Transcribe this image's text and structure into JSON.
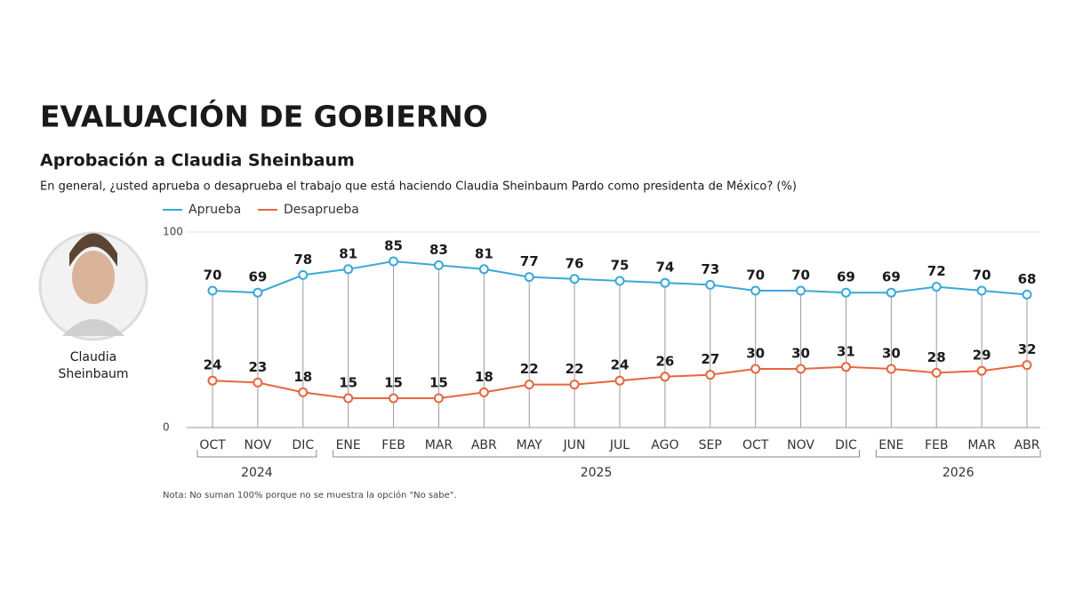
{
  "chart_data": {
    "type": "line",
    "title": "EVALUACIÓN DE GOBIERNO",
    "subtitle": "Aprobación a Claudia Sheinbaum",
    "question": "En general, ¿usted aprueba o desaprueba el trabajo que está haciendo Claudia Sheinbaum Pardo como presidenta de México? (%)",
    "photo_caption": [
      "Claudia",
      "Sheinbaum"
    ],
    "categories": [
      "OCT",
      "NOV",
      "DIC",
      "ENE",
      "FEB",
      "MAR",
      "ABR",
      "MAY",
      "JUN",
      "JUL",
      "AGO",
      "SEP",
      "OCT",
      "NOV",
      "DIC",
      "ENE",
      "FEB",
      "MAR",
      "ABR"
    ],
    "years": [
      "2024",
      "2024",
      "2024",
      "2025",
      "2025",
      "2025",
      "2025",
      "2025",
      "2025",
      "2025",
      "2025",
      "2025",
      "2025",
      "2025",
      "2025",
      "2026",
      "2026",
      "2026",
      "2026"
    ],
    "series": [
      {
        "name": "Aprueba",
        "color": "#3aa8d8",
        "values": [
          70,
          69,
          78,
          81,
          85,
          83,
          81,
          77,
          76,
          75,
          74,
          73,
          70,
          70,
          69,
          69,
          72,
          70,
          68
        ]
      },
      {
        "name": "Desaprueba",
        "color": "#e8653f",
        "values": [
          24,
          23,
          18,
          15,
          15,
          15,
          18,
          22,
          22,
          24,
          26,
          27,
          30,
          30,
          31,
          30,
          28,
          29,
          32
        ]
      }
    ],
    "ylim": [
      0,
      100
    ],
    "yticks": [
      0,
      100
    ],
    "grid": true,
    "note": "Nota: No suman 100% porque no se muestra la opción \"No sabe\"."
  }
}
